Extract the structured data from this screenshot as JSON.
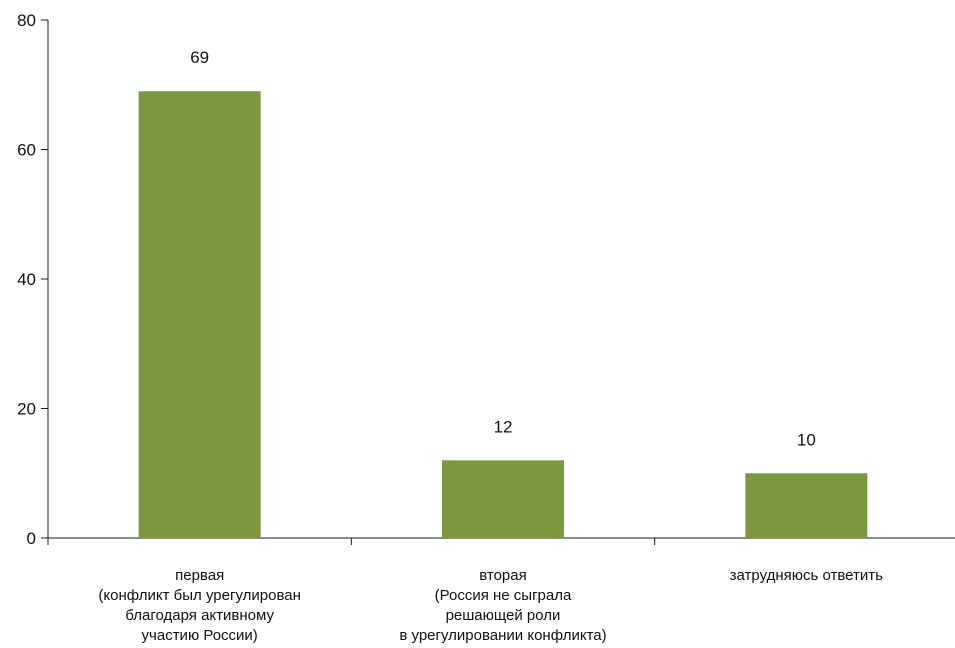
{
  "chart_data": {
    "type": "bar",
    "title": "",
    "xlabel": "",
    "ylabel": "",
    "ylim": [
      0,
      80
    ],
    "y_ticks": [
      0,
      20,
      40,
      60,
      80
    ],
    "grid": false,
    "legend": "none",
    "bar_color": "#7a983f",
    "categories": [
      [
        "первая",
        "(конфликт был урегулирован",
        "благодаря активному",
        "участию России)"
      ],
      [
        "вторая",
        "(Россия не сыграла",
        "решающей роли",
        "в урегулировании конфликта)"
      ],
      [
        "затрудняюсь ответить"
      ]
    ],
    "values": [
      69,
      12,
      10
    ],
    "value_labels": [
      "69",
      "12",
      "10"
    ]
  }
}
